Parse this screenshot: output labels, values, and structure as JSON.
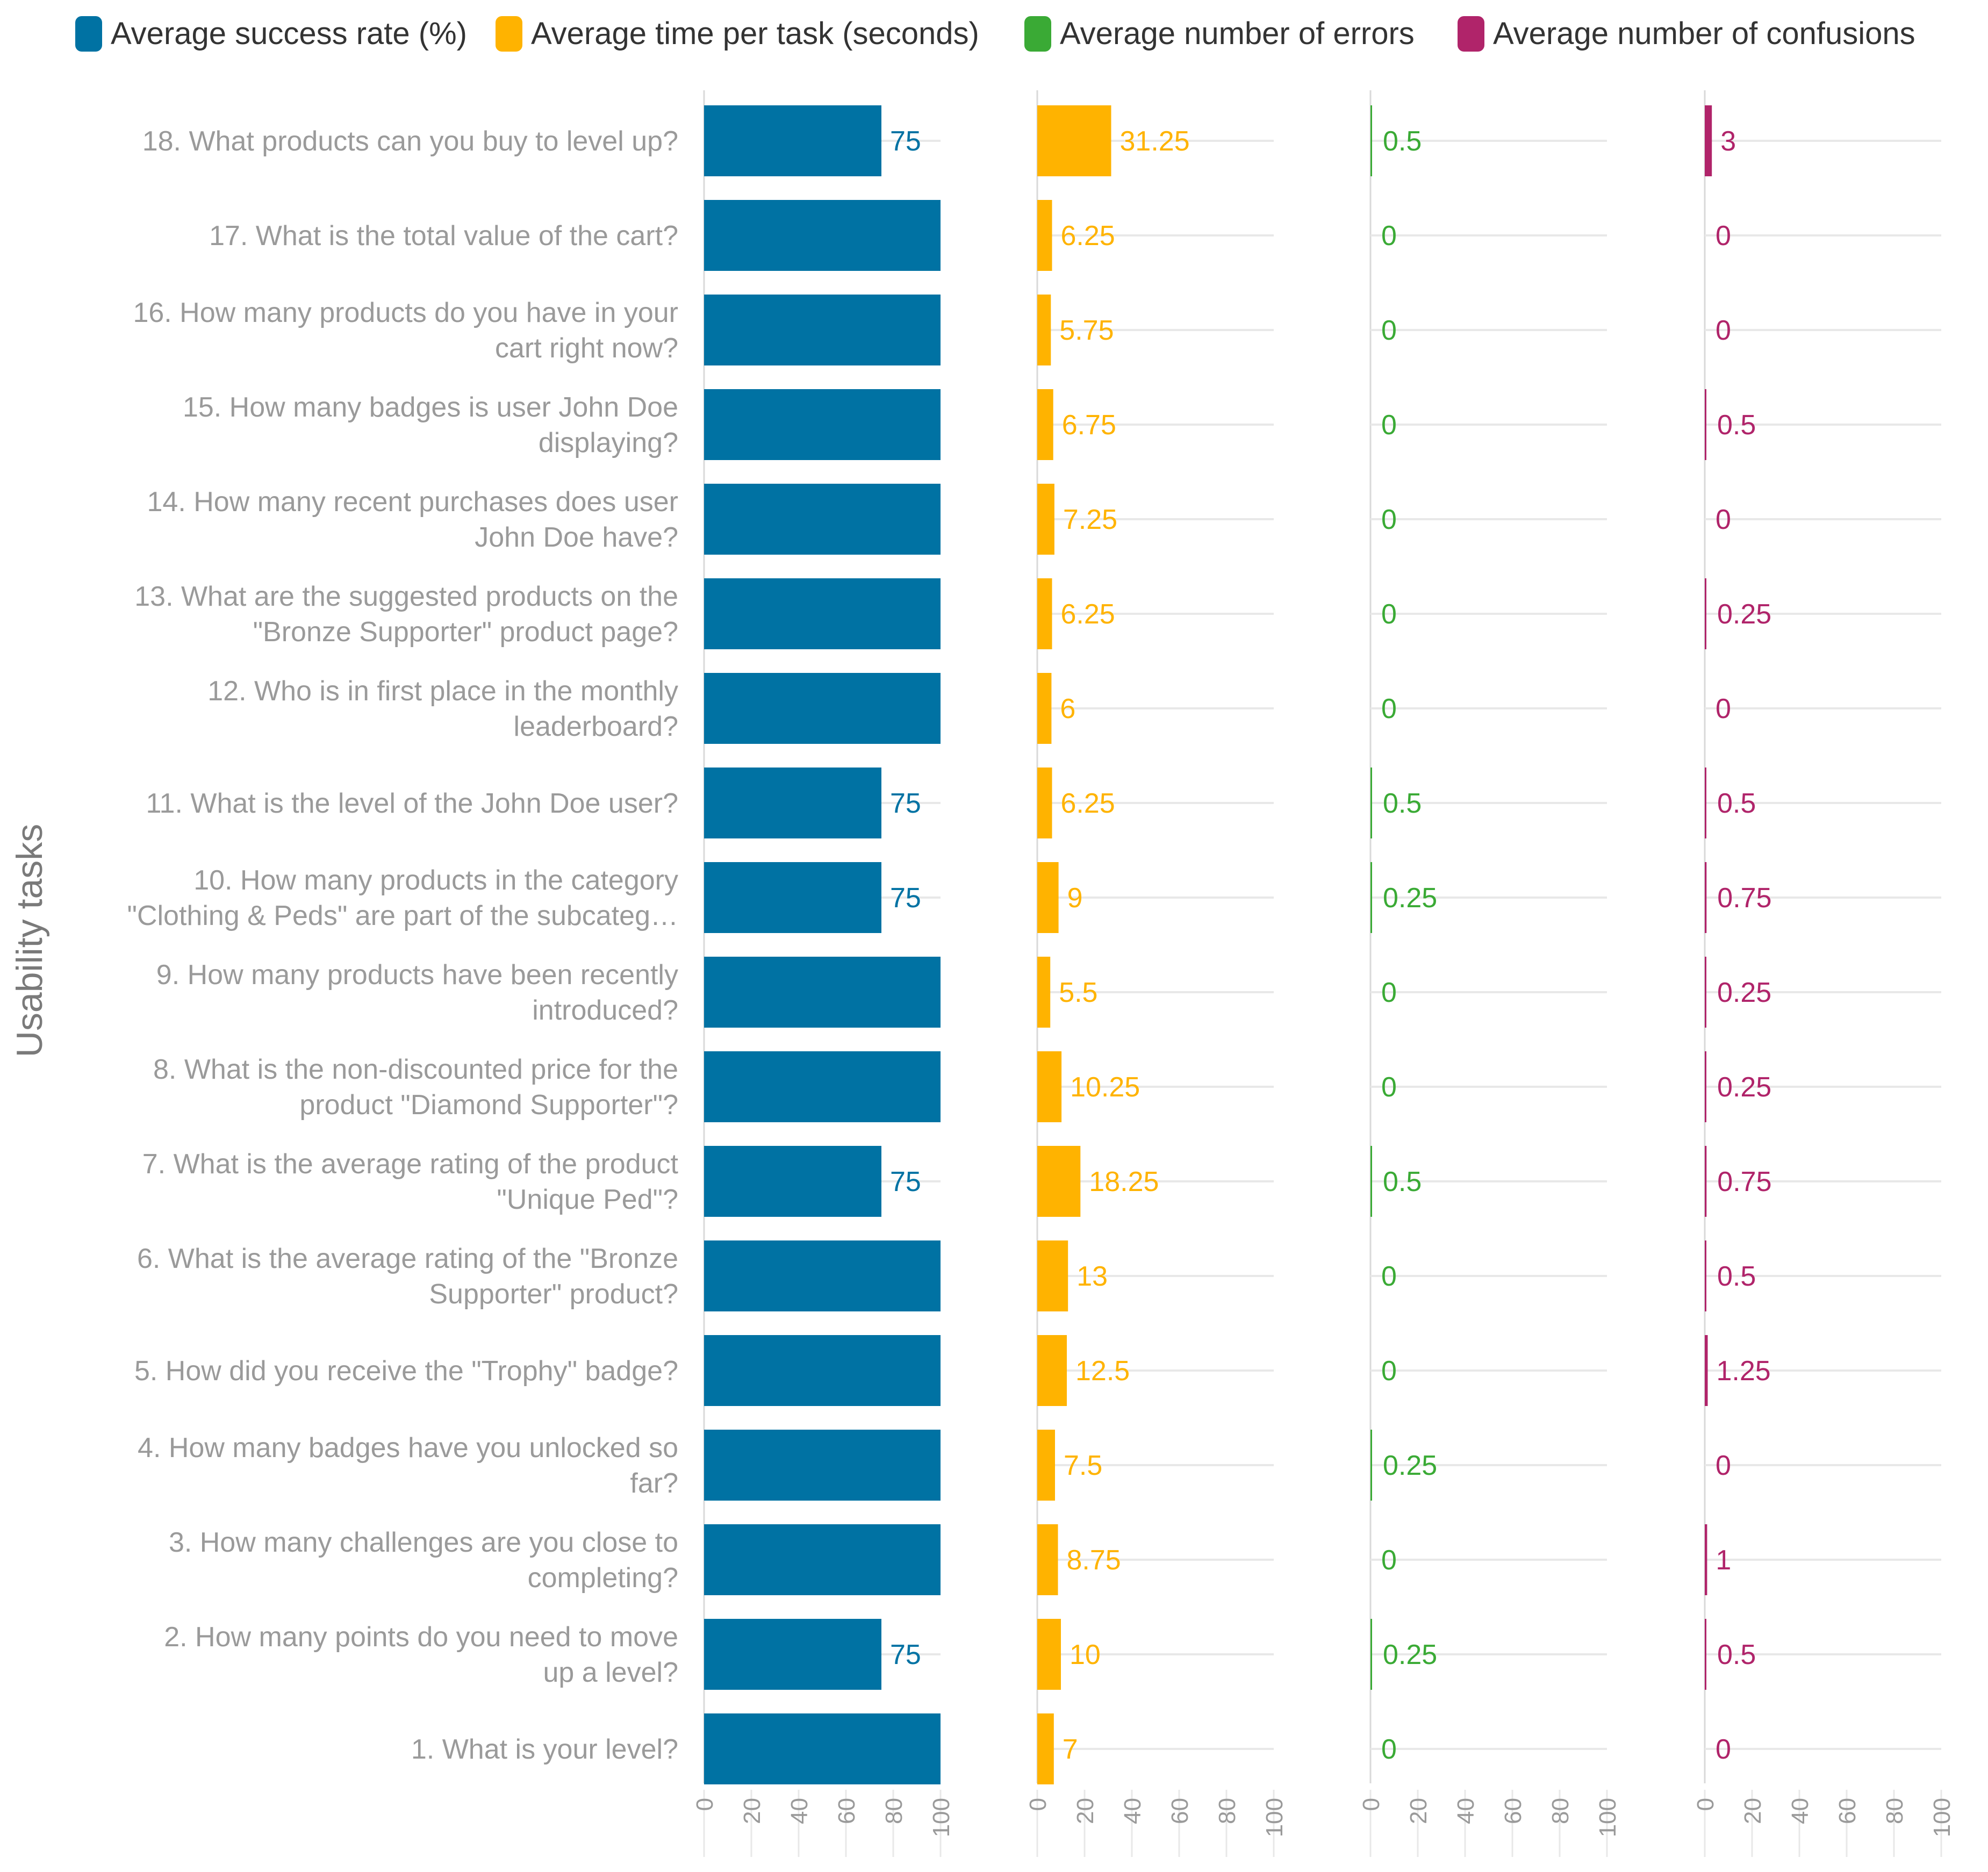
{
  "chart_data": {
    "type": "bar",
    "orientation": "horizontal",
    "y_axis_title": "Usability tasks",
    "legend_position": "top",
    "colors": {
      "success": "#0072a3",
      "time": "#ffb300",
      "errors": "#3aaa35",
      "confusions": "#b0246a",
      "task_label": "#9a9a9a",
      "axis_title": "#7a7a7a",
      "tick_label": "#9a9a9a",
      "gridline": "#e8e8e8",
      "axis_line": "#d9d9d9"
    },
    "categories": [
      "18. What products can you buy to level up?",
      "17. What is the total value of the cart?",
      "16. How many products do you have in your cart right now?",
      "15. How many badges is user John Doe displaying?",
      "14. How many recent purchases does user John Doe have?",
      "13. What are the suggested products on the \"Bronze Supporter\" product page?",
      "12. Who is in first place in the monthly leaderboard?",
      "11. What is the level of the John Doe user?",
      "10. How many products in the category \"Clothing & Peds\" are part of the subcateg…",
      "9. How many products have been recently introduced?",
      "8. What is the non-discounted price for the product \"Diamond Supporter\"?",
      "7. What is the average rating of the product \"Unique Ped\"?",
      "6. What is the average rating of the \"Bronze Supporter\" product?",
      "5. How did you receive the \"Trophy\" badge?",
      "4. How many badges have you unlocked so far?",
      "3. How many challenges are you close to completing?",
      "2. How many points do you need to move up a level?",
      "1. What is your level?"
    ],
    "category_lines": [
      [
        "18. What products can you buy to level up?"
      ],
      [
        "17. What is the total value of the cart?"
      ],
      [
        "16. How many products do you have in your",
        "cart right now?"
      ],
      [
        "15. How many badges is user John Doe",
        "displaying?"
      ],
      [
        "14. How many recent purchases does user",
        "John Doe have?"
      ],
      [
        "13. What are the suggested products on the",
        "\"Bronze Supporter\" product page?"
      ],
      [
        "12. Who is in first place in the monthly",
        "leaderboard?"
      ],
      [
        "11. What is the level of the John Doe user?"
      ],
      [
        "10. How many products in the category",
        "\"Clothing & Peds\" are part of the subcateg…"
      ],
      [
        "9. How many products have been recently",
        "introduced?"
      ],
      [
        "8. What is the non-discounted price for the",
        "product \"Diamond Supporter\"?"
      ],
      [
        "7. What is the average rating of the product",
        "\"Unique Ped\"?"
      ],
      [
        "6. What is the average rating of the \"Bronze",
        "Supporter\" product?"
      ],
      [
        "5. How did you receive the \"Trophy\" badge?"
      ],
      [
        "4. How many badges have you unlocked so",
        "far?"
      ],
      [
        "3. How many challenges are you close to",
        "completing?"
      ],
      [
        "2. How many points do you need to move",
        "up a level?"
      ],
      [
        "1. What is your level?"
      ]
    ],
    "series": [
      {
        "name": "Average success rate (%)",
        "color_key": "success",
        "xlim": [
          0,
          100
        ],
        "values": [
          75,
          100,
          100,
          100,
          100,
          100,
          100,
          75,
          75,
          100,
          100,
          75,
          100,
          100,
          100,
          100,
          75,
          100
        ],
        "labels": [
          "75",
          "",
          "",
          "",
          "",
          "",
          "",
          "75",
          "75",
          "",
          "",
          "75",
          "",
          "",
          "",
          "",
          "75",
          ""
        ]
      },
      {
        "name": "Average time per task (seconds)",
        "color_key": "time",
        "xlim": [
          0,
          100
        ],
        "values": [
          31.25,
          6.25,
          5.75,
          6.75,
          7.25,
          6.25,
          6,
          6.25,
          9,
          5.5,
          10.25,
          18.25,
          13,
          12.5,
          7.5,
          8.75,
          10,
          7
        ],
        "labels": [
          "31.25",
          "6.25",
          "5.75",
          "6.75",
          "7.25",
          "6.25",
          "6",
          "6.25",
          "9",
          "5.5",
          "10.25",
          "18.25",
          "13",
          "12.5",
          "7.5",
          "8.75",
          "10",
          "7"
        ]
      },
      {
        "name": "Average number of errors",
        "color_key": "errors",
        "xlim": [
          0,
          100
        ],
        "values": [
          0.5,
          0,
          0,
          0,
          0,
          0,
          0,
          0.5,
          0.25,
          0,
          0,
          0.5,
          0,
          0,
          0.25,
          0,
          0.25,
          0
        ],
        "labels": [
          "0.5",
          "0",
          "0",
          "0",
          "0",
          "0",
          "0",
          "0.5",
          "0.25",
          "0",
          "0",
          "0.5",
          "0",
          "0",
          "0.25",
          "0",
          "0.25",
          "0"
        ]
      },
      {
        "name": "Average number of confusions",
        "color_key": "confusions",
        "xlim": [
          0,
          100
        ],
        "values": [
          3,
          0,
          0,
          0.5,
          0,
          0.25,
          0,
          0.5,
          0.75,
          0.25,
          0.25,
          0.75,
          0.5,
          1.25,
          0,
          1,
          0.5,
          0
        ],
        "labels": [
          "3",
          "0",
          "0",
          "0.5",
          "0",
          "0.25",
          "0",
          "0.5",
          "0.75",
          "0.25",
          "0.25",
          "0.75",
          "0.5",
          "1.25",
          "0",
          "1",
          "0.5",
          "0"
        ]
      }
    ],
    "x_ticks": [
      "0",
      "20",
      "40",
      "60",
      "80",
      "100"
    ]
  }
}
